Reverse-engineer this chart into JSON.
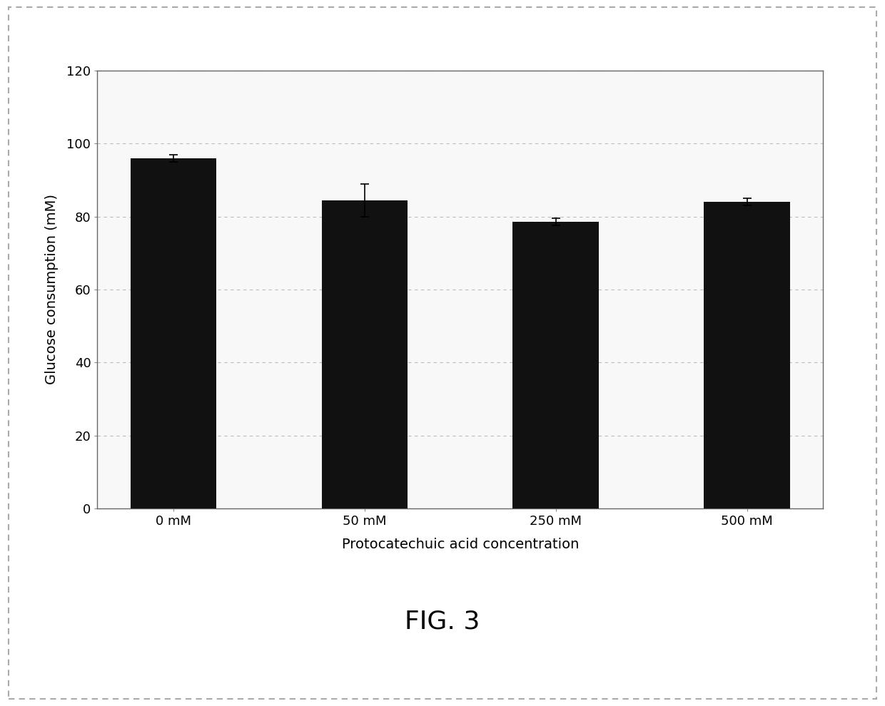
{
  "categories": [
    "0 mM",
    "50 mM",
    "250 mM",
    "500 mM"
  ],
  "values": [
    96.0,
    84.5,
    78.5,
    84.0
  ],
  "errors": [
    1.0,
    4.5,
    1.0,
    1.0
  ],
  "bar_color": "#111111",
  "bar_width": 0.45,
  "ylabel": "Glucose consumption (mM)",
  "xlabel": "Protocatechuic acid concentration",
  "ylim": [
    0,
    120
  ],
  "yticks": [
    0,
    20,
    40,
    60,
    80,
    100,
    120
  ],
  "grid_color": "#bbbbbb",
  "fig_caption": "FIG. 3",
  "background_color": "#ffffff",
  "plot_bg_color": "#f8f8f8",
  "ylabel_fontsize": 14,
  "xlabel_fontsize": 14,
  "tick_fontsize": 13,
  "caption_fontsize": 26,
  "border_color": "#888888",
  "spine_color": "#666666"
}
